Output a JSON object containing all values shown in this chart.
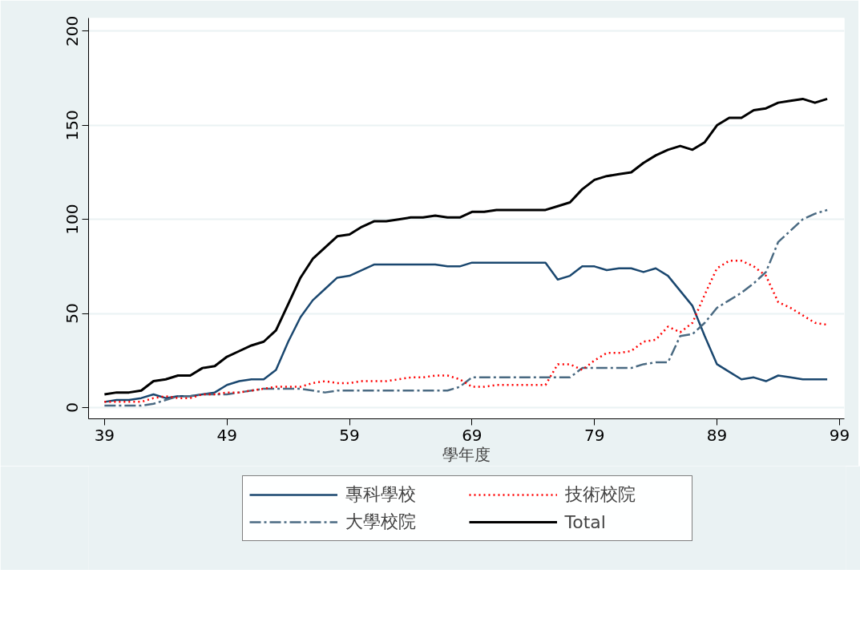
{
  "chart_data": {
    "type": "line",
    "xlabel": "學年度",
    "x": [
      39,
      40,
      41,
      42,
      43,
      44,
      45,
      46,
      47,
      48,
      49,
      50,
      51,
      52,
      53,
      54,
      55,
      56,
      57,
      58,
      59,
      60,
      61,
      62,
      63,
      64,
      65,
      66,
      67,
      68,
      69,
      70,
      71,
      72,
      73,
      74,
      75,
      76,
      77,
      78,
      79,
      80,
      81,
      82,
      83,
      84,
      85,
      86,
      87,
      88,
      89,
      90,
      91,
      92,
      93,
      94,
      95,
      96,
      97,
      98
    ],
    "series": [
      {
        "name": "專科學校",
        "color": "#1a476f",
        "line_style": "solid",
        "values": [
          3,
          4,
          4,
          5,
          7,
          5,
          6,
          6,
          7,
          8,
          12,
          14,
          15,
          15,
          20,
          35,
          48,
          57,
          63,
          69,
          70,
          73,
          76,
          76,
          76,
          76,
          76,
          76,
          75,
          75,
          77,
          77,
          77,
          77,
          77,
          77,
          77,
          68,
          70,
          75,
          75,
          73,
          74,
          74,
          72,
          74,
          70,
          62,
          54,
          38,
          23,
          19,
          15,
          16,
          14,
          17,
          16,
          15,
          15,
          15
        ]
      },
      {
        "name": "大學校院",
        "color": "#4a6a82",
        "line_style": "dashdot",
        "values": [
          1,
          1,
          1,
          1,
          2,
          4,
          6,
          6,
          7,
          7,
          7,
          8,
          9,
          10,
          10,
          10,
          10,
          9,
          8,
          9,
          9,
          9,
          9,
          9,
          9,
          9,
          9,
          9,
          9,
          11,
          16,
          16,
          16,
          16,
          16,
          16,
          16,
          16,
          16,
          21,
          21,
          21,
          21,
          21,
          23,
          24,
          24,
          38,
          39,
          45,
          53,
          57,
          61,
          66,
          72,
          88,
          94,
          100,
          103,
          105
        ]
      },
      {
        "name": "技術校院",
        "color": "#ff0000",
        "line_style": "dotted",
        "values": [
          3,
          3,
          3,
          3,
          5,
          6,
          5,
          5,
          7,
          7,
          8,
          8,
          9,
          10,
          11,
          11,
          11,
          13,
          14,
          13,
          13,
          14,
          14,
          14,
          15,
          16,
          16,
          17,
          17,
          15,
          11,
          11,
          12,
          12,
          12,
          12,
          12,
          23,
          23,
          20,
          25,
          29,
          29,
          30,
          35,
          36,
          43,
          40,
          45,
          60,
          74,
          78,
          78,
          75,
          70,
          56,
          53,
          49,
          45,
          44
        ]
      },
      {
        "name": "Total",
        "color": "#000000",
        "line_style": "solid",
        "values": [
          7,
          8,
          8,
          9,
          14,
          15,
          17,
          17,
          21,
          22,
          27,
          30,
          33,
          35,
          41,
          55,
          69,
          79,
          85,
          91,
          92,
          96,
          99,
          99,
          100,
          101,
          101,
          102,
          101,
          101,
          104,
          104,
          105,
          105,
          105,
          105,
          105,
          107,
          109,
          116,
          121,
          123,
          124,
          125,
          130,
          134,
          137,
          139,
          137,
          141,
          150,
          154,
          154,
          158,
          159,
          162,
          163,
          164,
          162,
          164
        ]
      }
    ],
    "xlim": [
      37.7,
      99.4
    ],
    "xticks": [
      39,
      49,
      59,
      69,
      79,
      89,
      99
    ],
    "ylim": [
      -6,
      207
    ],
    "yticks": [
      0,
      50,
      100,
      150,
      200
    ],
    "grid": "y",
    "legend": "bottom"
  }
}
